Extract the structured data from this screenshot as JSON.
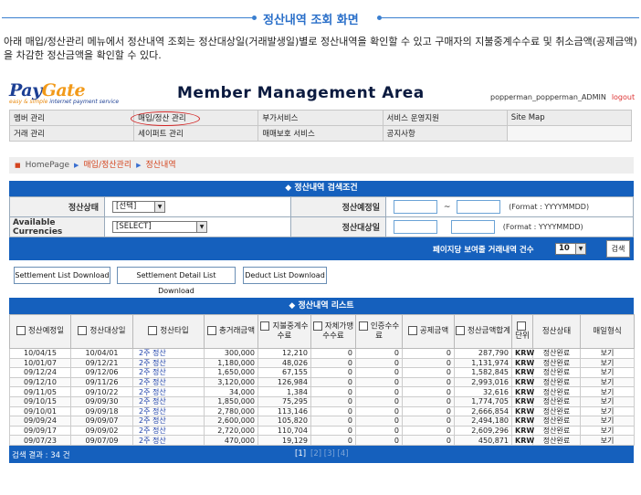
{
  "page_title": "정산내역 조회 화면",
  "description": "아래 매입/정산관리 메뉴에서 정산내역 조회는 정산대상일(거래발생일)별로 정산내역을 확인할 수 있고 구매자의 지불중계수수료 및 취소금액(공제금액)을 차감한 정산금액을 확인할 수 있다.",
  "logo": {
    "pay": "Pay",
    "gate": "Gate",
    "tagline_1": "easy & simple",
    "tagline_2": " internet payment service"
  },
  "header_title": "Member Management Area",
  "admin": {
    "user": "popperman_popperman_ADMIN",
    "logout": "logout"
  },
  "menu": {
    "row1": [
      "멤버 관리",
      "매입/정산 관리",
      "부가서비스",
      "서비스 운영지원",
      "Site Map"
    ],
    "row2": [
      "거래 관리",
      "세이퍼트 관리",
      "매매보호 서비스",
      "공지사항",
      ""
    ]
  },
  "breadcrumb": {
    "home": "HomePage",
    "level1": "매입/정산관리",
    "level2": "정산내역"
  },
  "search": {
    "title": "◆ 정산내역 검색조건",
    "status_label": "정산상태",
    "status_value": "[선택]",
    "currency_label": "Available Currencies",
    "currency_value": "[SELECT]",
    "schedule_label": "정산예정일",
    "target_label": "정산대상일",
    "tilde": "~",
    "format": "(Format : YYYYMMDD)",
    "page_label": "페이지당 보여줄 거래내역 건수",
    "page_value": "10",
    "search_button": "검색"
  },
  "buttons": {
    "settlement_list": "Settlement List Download",
    "settlement_detail": "Settlement Detail List Download",
    "deduct_list": "Deduct List Download"
  },
  "list": {
    "title": "◆ 정산내역 리스트",
    "headers": [
      "정산예정일",
      "정산대상일",
      "정산타입",
      "총거래금액",
      "지불중계수수료",
      "자체가맹수수료",
      "인증수수료",
      "공제금액",
      "정산금액합계",
      "단위",
      "정산상태",
      "매일형식"
    ],
    "rows": [
      [
        "10/04/15",
        "10/04/01",
        "2주 정산",
        "300,000",
        "12,210",
        "0",
        "0",
        "0",
        "287,790",
        "KRW",
        "정산완료",
        "보기"
      ],
      [
        "10/01/07",
        "09/12/21",
        "2주 정산",
        "1,180,000",
        "48,026",
        "0",
        "0",
        "0",
        "1,131,974",
        "KRW",
        "정산완료",
        "보기"
      ],
      [
        "09/12/24",
        "09/12/06",
        "2주 정산",
        "1,650,000",
        "67,155",
        "0",
        "0",
        "0",
        "1,582,845",
        "KRW",
        "정산완료",
        "보기"
      ],
      [
        "09/12/10",
        "09/11/26",
        "2주 정산",
        "3,120,000",
        "126,984",
        "0",
        "0",
        "0",
        "2,993,016",
        "KRW",
        "정산완료",
        "보기"
      ],
      [
        "09/11/05",
        "09/10/22",
        "2주 정산",
        "34,000",
        "1,384",
        "0",
        "0",
        "0",
        "32,616",
        "KRW",
        "정산완료",
        "보기"
      ],
      [
        "09/10/15",
        "09/09/30",
        "2주 정산",
        "1,850,000",
        "75,295",
        "0",
        "0",
        "0",
        "1,774,705",
        "KRW",
        "정산완료",
        "보기"
      ],
      [
        "09/10/01",
        "09/09/18",
        "2주 정산",
        "2,780,000",
        "113,146",
        "0",
        "0",
        "0",
        "2,666,854",
        "KRW",
        "정산완료",
        "보기"
      ],
      [
        "09/09/24",
        "09/09/07",
        "2주 정산",
        "2,600,000",
        "105,820",
        "0",
        "0",
        "0",
        "2,494,180",
        "KRW",
        "정산완료",
        "보기"
      ],
      [
        "09/09/17",
        "09/09/02",
        "2주 정산",
        "2,720,000",
        "110,704",
        "0",
        "0",
        "0",
        "2,609,296",
        "KRW",
        "정산완료",
        "보기"
      ],
      [
        "09/07/23",
        "09/07/09",
        "2주 정산",
        "470,000",
        "19,129",
        "0",
        "0",
        "0",
        "450,871",
        "KRW",
        "정산완료",
        "보기"
      ]
    ],
    "result_count": "검색 결과 : 34 건",
    "pager_current": "[1]",
    "pager_rest": "[2] [3] [4]"
  }
}
